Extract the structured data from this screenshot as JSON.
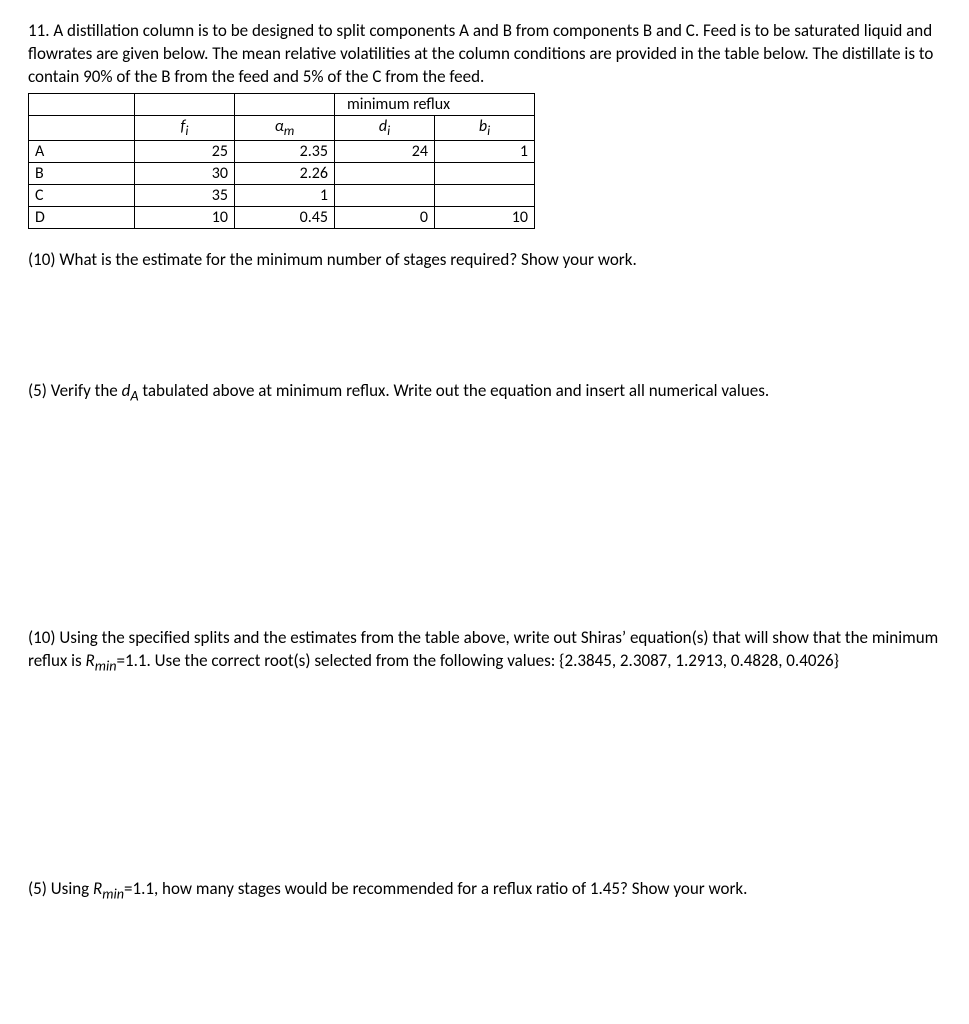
{
  "intro": {
    "text": "11. A distillation column is to be designed to split components A and B from components B and C.  Feed is to be saturated liquid and flowrates are given below. The mean relative volatilities at the column conditions are provided in the table below. The distillate is to contain 90% of the B from the feed and 5% of the C from the feed.",
    "fontsize_pt": 17
  },
  "table": {
    "group_header": "minimum reflux",
    "col_headers": {
      "c0": "",
      "c1": "f",
      "c1_sub": "i",
      "c2": "α",
      "c2_sub": "m",
      "c3": "d",
      "c3_sub": "i",
      "c4": "b",
      "c4_sub": "i"
    },
    "rows": [
      {
        "label": "A",
        "f": "25",
        "alpha": "2.35",
        "d": "24",
        "b": "1"
      },
      {
        "label": "B",
        "f": "30",
        "alpha": "2.26",
        "d": "",
        "b": ""
      },
      {
        "label": "C",
        "f": "35",
        "alpha": "1",
        "d": "",
        "b": ""
      },
      {
        "label": "D",
        "f": "10",
        "alpha": "0.45",
        "d": "0",
        "b": "10"
      }
    ],
    "border_color": "#000000",
    "fontsize_pt": 16
  },
  "questions": {
    "q1": "(10) What is the estimate for the minimum number of stages required? Show your work.",
    "q2_pre": "(5) Verify the ",
    "q2_sym": "d",
    "q2_sub": "A",
    "q2_post": " tabulated above at minimum reflux. Write out the equation and insert all numerical values.",
    "q3_pre": "(10) Using the specified splits and the estimates from the table above, write out Shiras’ equation(s) that will show that the minimum reflux is ",
    "q3_sym": "R",
    "q3_sub": "min",
    "q3_mid": "=1.1. Use the correct root(s) selected from the following values: {2.3845, 2.3087, 1.2913, 0.4828, 0.4026}",
    "q4_pre": "(5) Using ",
    "q4_sym": "R",
    "q4_sub": "min",
    "q4_post": "=1.1, how many stages would be recommended for a reflux ratio of 1.45? Show your work."
  },
  "typography": {
    "body_fontsize_pt": 17,
    "font_family": "Calibri",
    "text_color": "#000000",
    "background_color": "#ffffff"
  }
}
